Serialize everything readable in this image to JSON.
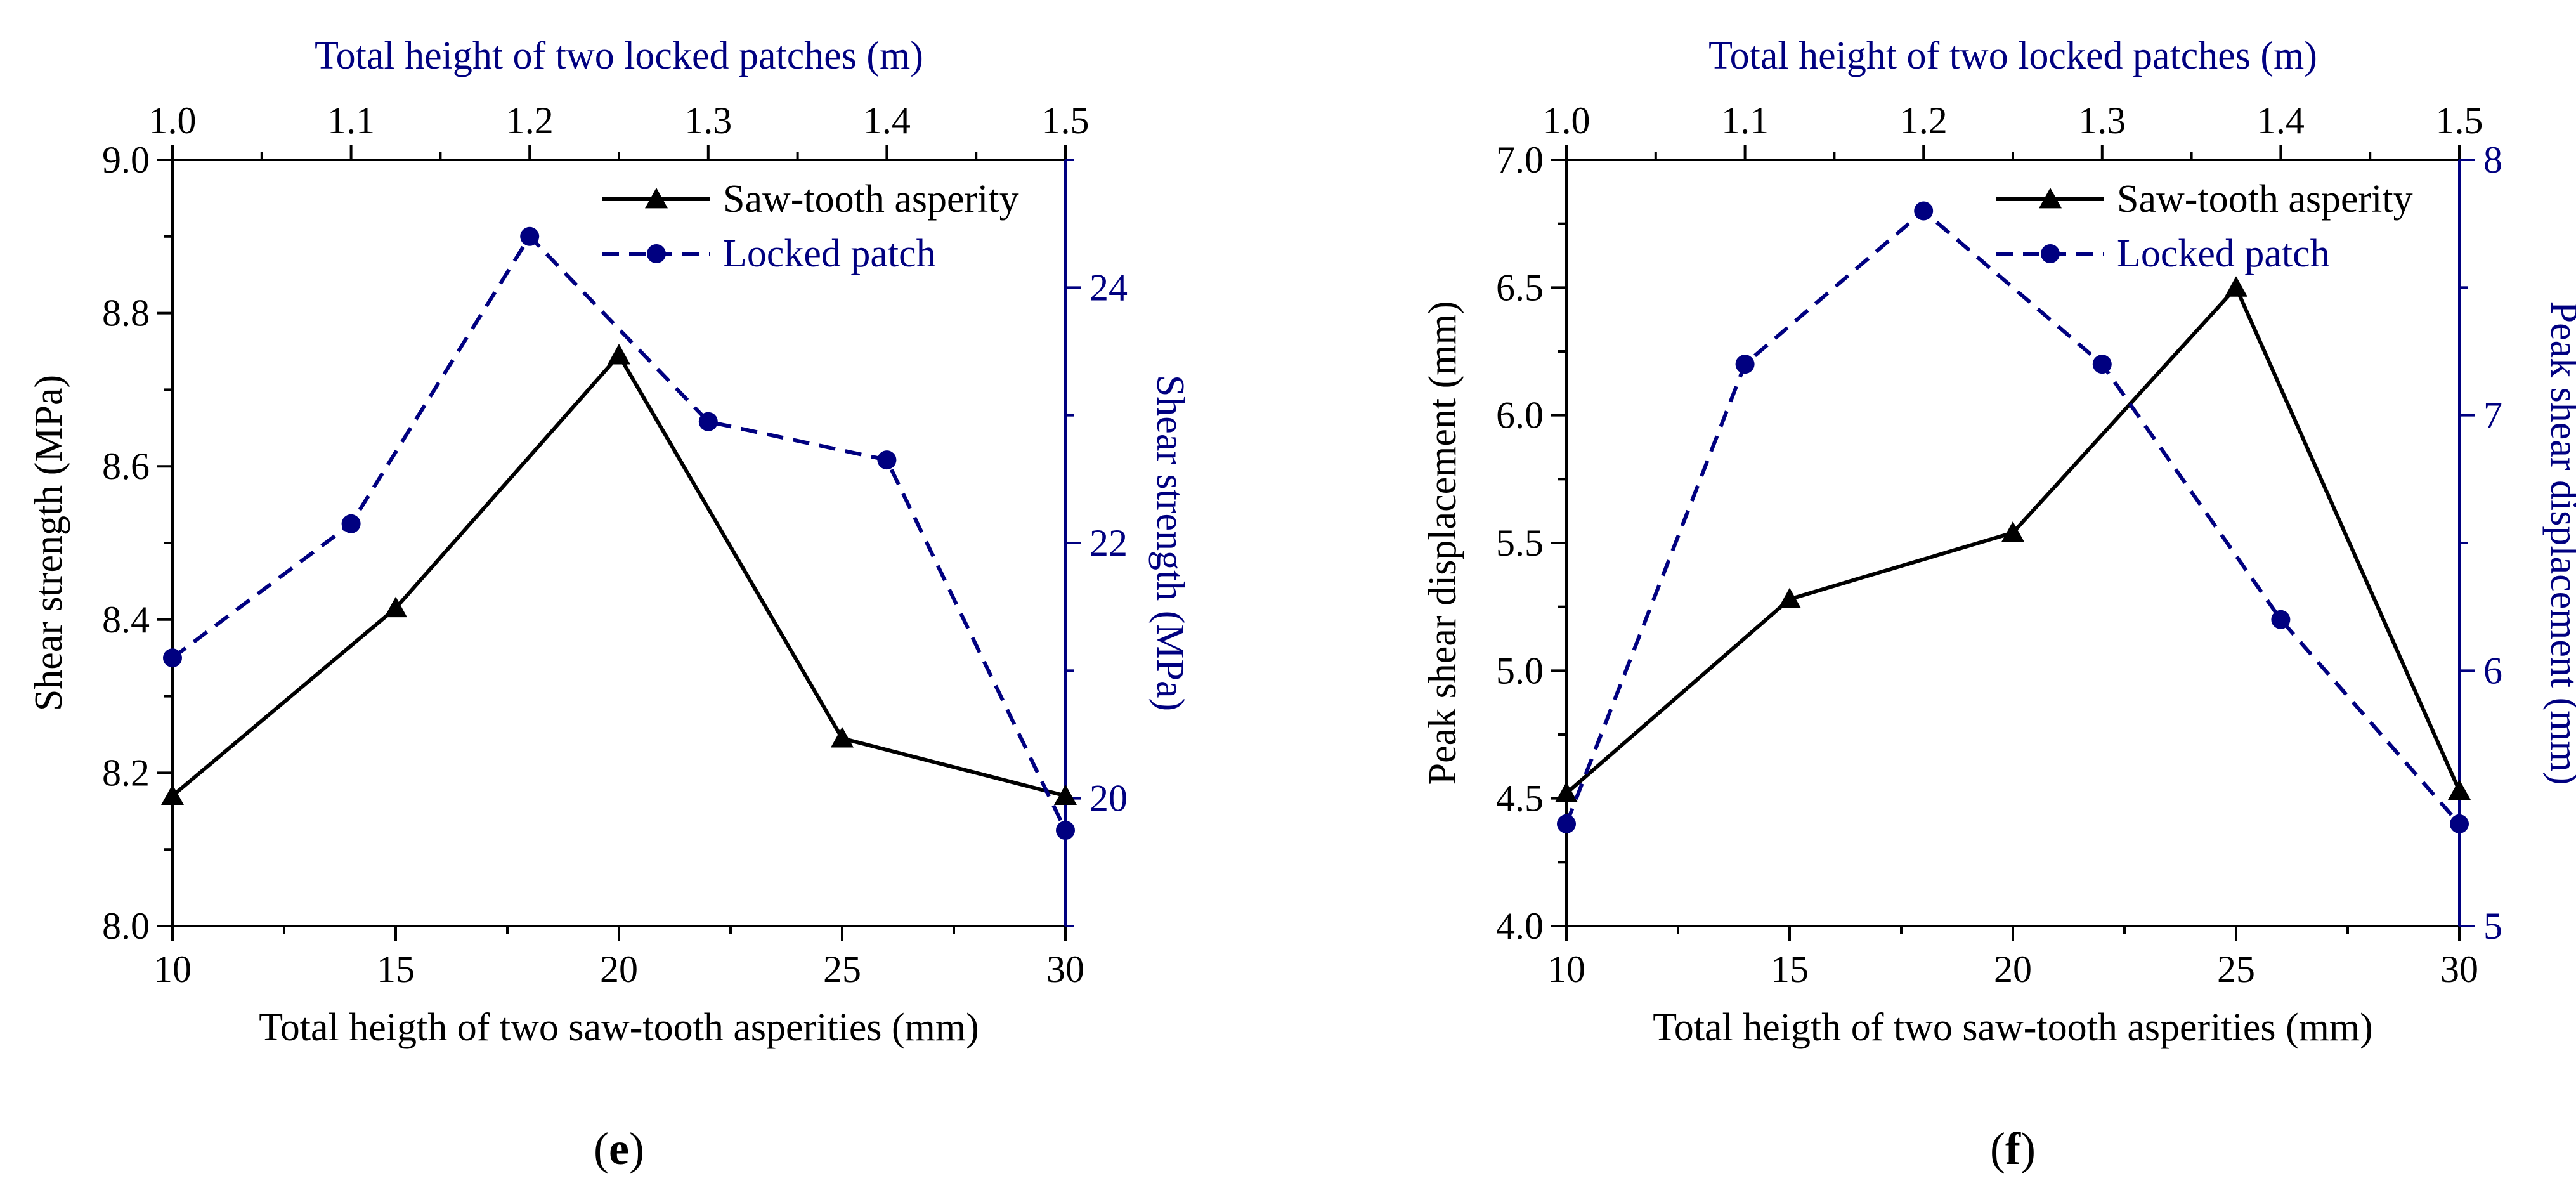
{
  "colors": {
    "primary": "#000000",
    "secondary": "#000080",
    "background": "#ffffff"
  },
  "chart_data": [
    {
      "panel_label": "e",
      "type": "line",
      "title": "",
      "xlabel": "Total heigth of  two saw-tooth asperities (mm)",
      "x2label": "Total height of  two locked patches (m)",
      "ylabel": "Shear strength (MPa)",
      "y2label": "Shear strength (MPa)",
      "xlim": [
        10,
        30
      ],
      "x2lim": [
        1.0,
        1.5
      ],
      "ylim": [
        8.0,
        9.0
      ],
      "y2lim": [
        19.0,
        25.0
      ],
      "x_ticks": [
        "10",
        "15",
        "20",
        "25",
        "30"
      ],
      "x2_ticks": [
        "1.0",
        "1.1",
        "1.2",
        "1.3",
        "1.4",
        "1.5"
      ],
      "y_ticks": [
        "8.0",
        "8.2",
        "8.4",
        "8.6",
        "8.8",
        "9.0"
      ],
      "y2_ticks": [
        "20",
        "22",
        "24"
      ],
      "legend_position": "top-right",
      "series": [
        {
          "name": "Saw-tooth asperity",
          "axis": "primary",
          "marker": "triangle",
          "line_style": "solid",
          "x": [
            10,
            15,
            20,
            25,
            30
          ],
          "y": [
            8.17,
            8.415,
            8.745,
            8.245,
            8.17
          ]
        },
        {
          "name": "Locked patch",
          "axis": "secondary",
          "marker": "circle",
          "line_style": "dashed",
          "x": [
            1.0,
            1.1,
            1.2,
            1.3,
            1.4,
            1.5
          ],
          "y": [
            21.1,
            22.15,
            24.4,
            22.95,
            22.65,
            19.75
          ]
        }
      ]
    },
    {
      "panel_label": "f",
      "type": "line",
      "title": "",
      "xlabel": "Total heigth of  two saw-tooth asperities (mm)",
      "x2label": "Total height of  two locked patches (m)",
      "ylabel": "Peak shear displacement (mm)",
      "y2label": "Peak shear displacement (mm)",
      "xlim": [
        10,
        30
      ],
      "x2lim": [
        1.0,
        1.5
      ],
      "ylim": [
        4.0,
        7.0
      ],
      "y2lim": [
        5,
        8
      ],
      "x_ticks": [
        "10",
        "15",
        "20",
        "25",
        "30"
      ],
      "x2_ticks": [
        "1.0",
        "1.1",
        "1.2",
        "1.3",
        "1.4",
        "1.5"
      ],
      "y_ticks": [
        "4.0",
        "4.5",
        "5.0",
        "5.5",
        "6.0",
        "6.5",
        "7.0"
      ],
      "y2_ticks": [
        "5",
        "6",
        "7",
        "8"
      ],
      "legend_position": "top-right",
      "series": [
        {
          "name": "Saw-tooth asperity",
          "axis": "primary",
          "marker": "triangle",
          "line_style": "solid",
          "x": [
            10,
            15,
            20,
            25,
            30
          ],
          "y": [
            4.52,
            5.28,
            5.54,
            6.5,
            4.53
          ]
        },
        {
          "name": "Locked patch",
          "axis": "secondary",
          "marker": "circle",
          "line_style": "dashed",
          "x": [
            1.0,
            1.1,
            1.2,
            1.3,
            1.4,
            1.5
          ],
          "y": [
            5.4,
            7.2,
            7.8,
            7.2,
            6.2,
            5.4
          ]
        }
      ]
    }
  ]
}
